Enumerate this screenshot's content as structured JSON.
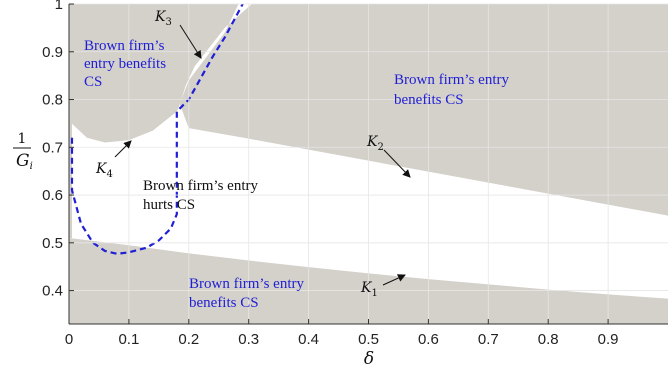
{
  "chart_data": {
    "type": "area",
    "xlabel": "δ",
    "ylabel_num": "1",
    "ylabel_den": "G",
    "ylabel_den_sub": "i",
    "xlim": [
      0,
      1.0
    ],
    "ylim": [
      0.33,
      1.0
    ],
    "xticks": [
      0,
      0.1,
      0.2,
      0.3,
      0.4,
      0.5,
      0.6,
      0.7,
      0.8,
      0.9
    ],
    "yticks": [
      0.4,
      0.5,
      0.6,
      0.7,
      0.8,
      0.9,
      1
    ],
    "grid": true,
    "region_color": "#d4d0ca",
    "boundary_color": "#1f1fd6",
    "text_blue": "#1f1fd6",
    "boundaries": {
      "K1": {
        "x": [
          0.0,
          0.1,
          0.2,
          0.3,
          0.4,
          0.5,
          0.6,
          0.7,
          0.8,
          0.9,
          1.0
        ],
        "y": [
          0.51,
          0.495,
          0.478,
          0.463,
          0.449,
          0.436,
          0.424,
          0.413,
          0.402,
          0.392,
          0.383
        ]
      },
      "K2": {
        "x": [
          0.0,
          0.1,
          0.2,
          0.3,
          0.4,
          0.5,
          0.6,
          0.7,
          0.8,
          0.9,
          1.0
        ],
        "y": [
          0.775,
          0.76,
          0.74,
          0.718,
          0.695,
          0.672,
          0.649,
          0.626,
          0.603,
          0.58,
          0.557
        ]
      },
      "K3": {
        "x": [
          0.18,
          0.2,
          0.22,
          0.24,
          0.26,
          0.28,
          0.29
        ],
        "y": [
          0.775,
          0.83,
          0.87,
          0.905,
          0.94,
          0.975,
          1.0
        ]
      },
      "K4": {
        "x": [
          0.0,
          0.03,
          0.06,
          0.1,
          0.14,
          0.18
        ],
        "y": [
          0.755,
          0.72,
          0.71,
          0.715,
          0.735,
          0.775
        ]
      },
      "dashed_loop": {
        "x": [
          0.005,
          0.005,
          0.02,
          0.04,
          0.06,
          0.08,
          0.1,
          0.13,
          0.15,
          0.17,
          0.18,
          0.18,
          0.18,
          0.2,
          0.22,
          0.24,
          0.26,
          0.275,
          0.29
        ],
        "y": [
          0.72,
          0.61,
          0.54,
          0.5,
          0.483,
          0.477,
          0.48,
          0.49,
          0.505,
          0.53,
          0.56,
          0.66,
          0.775,
          0.8,
          0.845,
          0.89,
          0.93,
          0.965,
          1.0
        ]
      },
      "left_dashed_top": {
        "x": [
          0.005,
          0.005
        ],
        "y": [
          0.72,
          0.62
        ]
      }
    },
    "region_labels": [
      {
        "line1": "Brown firm’s",
        "line2": "entry benefits",
        "line3": "CS",
        "color": "blue"
      },
      {
        "line1": "Brown firm’s entry",
        "line2": "benefits CS",
        "color": "blue"
      },
      {
        "line1": "Brown firm’s entry",
        "line2": "hurts CS",
        "color": "black"
      },
      {
        "line1": "Brown firm’s entry",
        "line2": "benefits CS",
        "color": "blue"
      }
    ],
    "curve_labels": [
      {
        "name": "K",
        "sub": "1"
      },
      {
        "name": "K",
        "sub": "2"
      },
      {
        "name": "K",
        "sub": "3"
      },
      {
        "name": "K",
        "sub": "4"
      }
    ]
  }
}
